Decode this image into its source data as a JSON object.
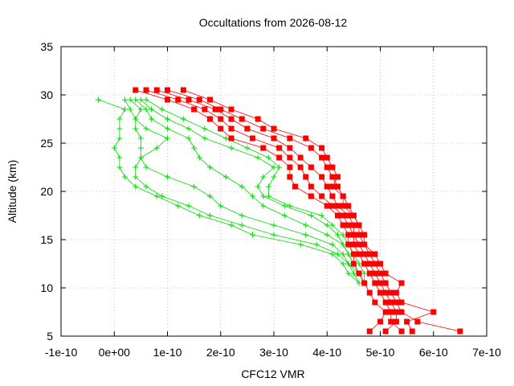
{
  "chart_data": {
    "type": "line",
    "title": "Occultations from 2026-08-12",
    "xlabel": "CFC12 VMR",
    "ylabel": "Altitude (km)",
    "xlim": [
      -1e-10,
      7e-10
    ],
    "ylim": [
      5,
      35
    ],
    "x_ticks": [
      {
        "value": -1e-10,
        "label": "-1e-10"
      },
      {
        "value": 0,
        "label": "0e+00"
      },
      {
        "value": 1e-10,
        "label": "1e-10"
      },
      {
        "value": 2e-10,
        "label": "2e-10"
      },
      {
        "value": 3e-10,
        "label": "3e-10"
      },
      {
        "value": 4e-10,
        "label": "4e-10"
      },
      {
        "value": 5e-10,
        "label": "5e-10"
      },
      {
        "value": 6e-10,
        "label": "6e-10"
      },
      {
        "value": 7e-10,
        "label": "7e-10"
      }
    ],
    "y_ticks": [
      {
        "value": 5,
        "label": "5"
      },
      {
        "value": 10,
        "label": "10"
      },
      {
        "value": 15,
        "label": "15"
      },
      {
        "value": 20,
        "label": "20"
      },
      {
        "value": 25,
        "label": "25"
      },
      {
        "value": 30,
        "label": "30"
      },
      {
        "value": 35,
        "label": "35"
      }
    ],
    "grid": true,
    "legend": "none",
    "colors": {
      "red": "#ff0000",
      "green": "#00dd00"
    },
    "series": [
      {
        "color": "red",
        "marker": "square",
        "points": [
          [
            0.48,
            5.5
          ],
          [
            0.5,
            6.5
          ],
          [
            0.51,
            7.5
          ],
          [
            0.49,
            8.5
          ],
          [
            0.48,
            9.5
          ],
          [
            0.47,
            10.5
          ],
          [
            0.46,
            11.5
          ],
          [
            0.45,
            12.5
          ],
          [
            0.45,
            13.5
          ],
          [
            0.44,
            14.5
          ],
          [
            0.44,
            15.5
          ],
          [
            0.43,
            16.5
          ],
          [
            0.42,
            17.5
          ],
          [
            0.4,
            18.5
          ],
          [
            0.37,
            19.5
          ],
          [
            0.34,
            20.5
          ],
          [
            0.33,
            21.5
          ],
          [
            0.33,
            22.5
          ],
          [
            0.31,
            23.5
          ],
          [
            0.28,
            24.5
          ],
          [
            0.22,
            25.5
          ],
          [
            0.2,
            26.5
          ],
          [
            0.18,
            27.5
          ],
          [
            0.15,
            28.5
          ],
          [
            0.1,
            29.5
          ],
          [
            0.04,
            30.5
          ]
        ]
      },
      {
        "color": "red",
        "marker": "square",
        "points": [
          [
            0.54,
            5.5
          ],
          [
            0.52,
            6.5
          ],
          [
            0.52,
            7.5
          ],
          [
            0.51,
            8.5
          ],
          [
            0.5,
            9.5
          ],
          [
            0.49,
            10.5
          ],
          [
            0.48,
            11.5
          ],
          [
            0.47,
            12.5
          ],
          [
            0.46,
            13.5
          ],
          [
            0.45,
            14.5
          ],
          [
            0.45,
            15.5
          ],
          [
            0.44,
            16.5
          ],
          [
            0.43,
            17.5
          ],
          [
            0.41,
            18.5
          ],
          [
            0.39,
            19.5
          ],
          [
            0.37,
            20.5
          ],
          [
            0.36,
            21.5
          ],
          [
            0.35,
            22.5
          ],
          [
            0.33,
            23.5
          ],
          [
            0.31,
            24.5
          ],
          [
            0.26,
            25.5
          ],
          [
            0.22,
            26.5
          ],
          [
            0.2,
            27.5
          ],
          [
            0.17,
            28.5
          ],
          [
            0.12,
            29.5
          ],
          [
            0.06,
            30.5
          ]
        ]
      },
      {
        "color": "red",
        "marker": "square",
        "points": [
          [
            0.51,
            5.5
          ],
          [
            0.53,
            6.5
          ],
          [
            0.53,
            7.5
          ],
          [
            0.52,
            8.5
          ],
          [
            0.51,
            9.5
          ],
          [
            0.5,
            10.5
          ],
          [
            0.49,
            11.5
          ],
          [
            0.48,
            12.5
          ],
          [
            0.47,
            13.5
          ],
          [
            0.46,
            14.5
          ],
          [
            0.45,
            15.5
          ],
          [
            0.45,
            16.5
          ],
          [
            0.44,
            17.5
          ],
          [
            0.42,
            18.5
          ],
          [
            0.41,
            19.5
          ],
          [
            0.4,
            20.5
          ],
          [
            0.39,
            21.5
          ],
          [
            0.37,
            22.5
          ],
          [
            0.35,
            23.5
          ],
          [
            0.33,
            24.5
          ],
          [
            0.3,
            25.5
          ],
          [
            0.25,
            26.5
          ],
          [
            0.22,
            27.5
          ],
          [
            0.19,
            28.5
          ],
          [
            0.14,
            29.5
          ],
          [
            0.08,
            30.5
          ]
        ]
      },
      {
        "color": "red",
        "marker": "square",
        "points": [
          [
            0.65,
            5.5
          ],
          [
            0.57,
            6.5
          ],
          [
            0.54,
            7.5
          ],
          [
            0.53,
            8.5
          ],
          [
            0.52,
            9.5
          ],
          [
            0.51,
            10.5
          ],
          [
            0.5,
            11.5
          ],
          [
            0.49,
            12.5
          ],
          [
            0.48,
            13.5
          ],
          [
            0.47,
            14.5
          ],
          [
            0.47,
            15.5
          ],
          [
            0.46,
            16.5
          ],
          [
            0.45,
            17.5
          ],
          [
            0.44,
            18.5
          ],
          [
            0.43,
            19.5
          ],
          [
            0.42,
            20.5
          ],
          [
            0.41,
            21.5
          ],
          [
            0.4,
            22.5
          ],
          [
            0.39,
            23.5
          ],
          [
            0.37,
            24.5
          ],
          [
            0.33,
            25.5
          ],
          [
            0.28,
            26.5
          ],
          [
            0.24,
            27.5
          ],
          [
            0.2,
            28.5
          ],
          [
            0.16,
            29.5
          ],
          [
            0.1,
            30.5
          ]
        ]
      },
      {
        "color": "red",
        "marker": "square",
        "points": [
          [
            0.56,
            5.5
          ],
          [
            0.55,
            6.5
          ],
          [
            0.6,
            7.5
          ],
          [
            0.54,
            8.5
          ],
          [
            0.53,
            9.5
          ],
          [
            0.54,
            10.5
          ],
          [
            0.51,
            11.5
          ],
          [
            0.5,
            12.5
          ],
          [
            0.49,
            13.5
          ],
          [
            0.47,
            14.5
          ],
          [
            0.46,
            15.5
          ],
          [
            0.46,
            16.5
          ],
          [
            0.45,
            17.5
          ],
          [
            0.43,
            18.5
          ],
          [
            0.43,
            19.5
          ],
          [
            0.41,
            20.5
          ],
          [
            0.42,
            21.5
          ],
          [
            0.41,
            22.5
          ],
          [
            0.4,
            23.5
          ],
          [
            0.39,
            24.5
          ],
          [
            0.36,
            25.5
          ],
          [
            0.3,
            26.5
          ],
          [
            0.27,
            27.5
          ],
          [
            0.22,
            28.5
          ],
          [
            0.18,
            29.5
          ],
          [
            0.13,
            30.5
          ]
        ]
      },
      {
        "color": "green",
        "marker": "plus",
        "points": [
          [
            0.46,
            10.5
          ],
          [
            0.44,
            11.5
          ],
          [
            0.43,
            12.5
          ],
          [
            0.41,
            13.5
          ],
          [
            0.35,
            14.5
          ],
          [
            0.26,
            15.5
          ],
          [
            0.22,
            16.5
          ],
          [
            0.16,
            17.5
          ],
          [
            0.12,
            18.5
          ],
          [
            0.08,
            19.5
          ],
          [
            0.04,
            20.5
          ],
          [
            0.02,
            21.5
          ],
          [
            0.01,
            22.5
          ],
          [
            0.01,
            23.5
          ],
          [
            0.0,
            24.5
          ],
          [
            0.01,
            25.5
          ],
          [
            0.01,
            26.5
          ],
          [
            0.01,
            27.5
          ],
          [
            0.02,
            28.5
          ],
          [
            -0.03,
            29.5
          ]
        ]
      },
      {
        "color": "green",
        "marker": "plus",
        "points": [
          [
            0.46,
            10.5
          ],
          [
            0.45,
            11.5
          ],
          [
            0.44,
            12.5
          ],
          [
            0.42,
            13.5
          ],
          [
            0.38,
            14.5
          ],
          [
            0.3,
            15.5
          ],
          [
            0.24,
            16.5
          ],
          [
            0.18,
            17.5
          ],
          [
            0.14,
            18.5
          ],
          [
            0.09,
            19.5
          ],
          [
            0.06,
            20.5
          ],
          [
            0.04,
            21.5
          ],
          [
            0.04,
            22.5
          ],
          [
            0.05,
            23.5
          ],
          [
            0.08,
            24.5
          ],
          [
            0.1,
            25.5
          ],
          [
            0.06,
            26.5
          ],
          [
            0.04,
            27.5
          ],
          [
            0.03,
            28.5
          ],
          [
            0.02,
            29.5
          ]
        ]
      },
      {
        "color": "green",
        "marker": "plus",
        "points": [
          [
            0.47,
            10.5
          ],
          [
            0.46,
            11.5
          ],
          [
            0.44,
            12.5
          ],
          [
            0.43,
            13.5
          ],
          [
            0.41,
            14.5
          ],
          [
            0.36,
            15.5
          ],
          [
            0.3,
            16.5
          ],
          [
            0.24,
            17.5
          ],
          [
            0.2,
            18.5
          ],
          [
            0.18,
            19.5
          ],
          [
            0.15,
            20.5
          ],
          [
            0.1,
            21.5
          ],
          [
            0.06,
            22.5
          ],
          [
            0.05,
            23.5
          ],
          [
            0.05,
            24.5
          ],
          [
            0.05,
            25.5
          ],
          [
            0.04,
            26.5
          ],
          [
            0.04,
            27.5
          ],
          [
            0.05,
            28.5
          ],
          [
            0.03,
            29.5
          ]
        ]
      },
      {
        "color": "green",
        "marker": "plus",
        "points": [
          [
            0.47,
            10.5
          ],
          [
            0.46,
            11.5
          ],
          [
            0.45,
            12.5
          ],
          [
            0.44,
            13.5
          ],
          [
            0.43,
            14.5
          ],
          [
            0.4,
            15.5
          ],
          [
            0.36,
            16.5
          ],
          [
            0.32,
            17.5
          ],
          [
            0.28,
            18.5
          ],
          [
            0.26,
            19.5
          ],
          [
            0.24,
            20.5
          ],
          [
            0.21,
            21.5
          ],
          [
            0.18,
            22.5
          ],
          [
            0.16,
            23.5
          ],
          [
            0.15,
            24.5
          ],
          [
            0.14,
            25.5
          ],
          [
            0.1,
            26.5
          ],
          [
            0.07,
            27.5
          ],
          [
            0.06,
            28.5
          ],
          [
            0.04,
            29.5
          ]
        ]
      },
      {
        "color": "green",
        "marker": "plus",
        "points": [
          [
            0.47,
            10.5
          ],
          [
            0.46,
            11.5
          ],
          [
            0.45,
            12.5
          ],
          [
            0.44,
            13.5
          ],
          [
            0.43,
            14.5
          ],
          [
            0.42,
            15.5
          ],
          [
            0.4,
            16.5
          ],
          [
            0.37,
            17.5
          ],
          [
            0.32,
            18.5
          ],
          [
            0.28,
            19.5
          ],
          [
            0.27,
            20.5
          ],
          [
            0.28,
            21.5
          ],
          [
            0.3,
            22.5
          ],
          [
            0.27,
            23.5
          ],
          [
            0.22,
            24.5
          ],
          [
            0.17,
            25.5
          ],
          [
            0.14,
            26.5
          ],
          [
            0.1,
            27.5
          ],
          [
            0.07,
            28.5
          ],
          [
            0.05,
            29.5
          ]
        ]
      },
      {
        "color": "green",
        "marker": "plus",
        "points": [
          [
            0.47,
            10.5
          ],
          [
            0.47,
            11.5
          ],
          [
            0.46,
            12.5
          ],
          [
            0.45,
            13.5
          ],
          [
            0.44,
            14.5
          ],
          [
            0.43,
            15.5
          ],
          [
            0.41,
            16.5
          ],
          [
            0.39,
            17.5
          ],
          [
            0.33,
            18.5
          ],
          [
            0.29,
            19.5
          ],
          [
            0.29,
            20.5
          ],
          [
            0.3,
            21.5
          ],
          [
            0.31,
            22.5
          ],
          [
            0.29,
            23.5
          ],
          [
            0.25,
            24.5
          ],
          [
            0.21,
            25.5
          ],
          [
            0.17,
            26.5
          ],
          [
            0.13,
            27.5
          ],
          [
            0.09,
            28.5
          ],
          [
            0.06,
            29.5
          ]
        ]
      }
    ]
  }
}
